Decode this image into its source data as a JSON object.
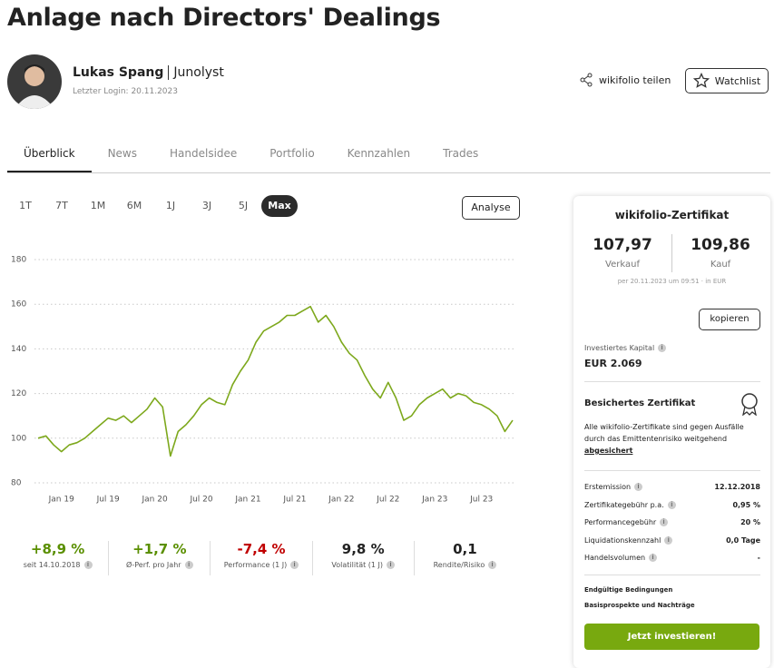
{
  "header": {
    "title": "Anlage nach Directors' Dealings",
    "trader": "Lukas Spang",
    "company": "Junolyst",
    "login": "Letzter Login: 20.11.2023",
    "share": "wikifolio teilen",
    "watchlist": "Watchlist"
  },
  "tabs": [
    "Überblick",
    "News",
    "Handelsidee",
    "Portfolio",
    "Kennzahlen",
    "Trades"
  ],
  "ranges": [
    "1T",
    "7T",
    "1M",
    "6M",
    "1J",
    "3J",
    "5J",
    "Max"
  ],
  "analyse": "Analyse",
  "chart_data": {
    "type": "line",
    "color": "#7da81c",
    "grid": true,
    "categories": [
      null,
      null,
      null,
      "Jan 19",
      null,
      null,
      null,
      null,
      null,
      "Jul 19",
      null,
      null,
      null,
      null,
      null,
      "Jan 20",
      null,
      null,
      null,
      null,
      null,
      "Jul 20",
      null,
      null,
      null,
      null,
      null,
      "Jan 21",
      null,
      null,
      null,
      null,
      null,
      "Jul 21",
      null,
      null,
      null,
      null,
      null,
      "Jan 22",
      null,
      null,
      null,
      null,
      null,
      "Jul 22",
      null,
      null,
      null,
      null,
      null,
      "Jan 23",
      null,
      null,
      null,
      null,
      null,
      "Jul 23",
      null,
      null,
      null,
      null
    ],
    "values": [
      100,
      101,
      97,
      94,
      97,
      98,
      100,
      103,
      106,
      109,
      108,
      110,
      107,
      110,
      113,
      118,
      114,
      92,
      103,
      106,
      110,
      115,
      118,
      116,
      115,
      124,
      130,
      135,
      143,
      148,
      150,
      152,
      155,
      155,
      157,
      159,
      152,
      155,
      150,
      143,
      138,
      135,
      128,
      122,
      118,
      125,
      118,
      108,
      110,
      115,
      118,
      120,
      122,
      118,
      120,
      119,
      116,
      115,
      113,
      110,
      103,
      108
    ],
    "ylim": [
      80,
      180
    ],
    "yticks": [
      80,
      100,
      120,
      140,
      160,
      180
    ]
  },
  "stats": [
    {
      "value": "+8,9 %",
      "label": "seit 14.10.2018",
      "color": "#5a8f00"
    },
    {
      "value": "+1,7 %",
      "label": "Ø-Perf. pro Jahr",
      "color": "#5a8f00"
    },
    {
      "value": "-7,4 %",
      "label": "Performance (1 J)",
      "color": "#c00000"
    },
    {
      "value": "9,8 %",
      "label": "Volatilität (1 J)",
      "color": "#222222"
    },
    {
      "value": "0,1",
      "label": "Rendite/Risiko",
      "color": "#222222"
    }
  ],
  "sidebar": {
    "title": "wikifolio-Zertifikat",
    "sell": "107,97",
    "sell_label": "Verkauf",
    "buy": "109,86",
    "buy_label": "Kauf",
    "timestamp": "per 20.11.2023 um 09:51 · in EUR",
    "copy": "kopieren",
    "capital_label": "Investiertes Kapital",
    "capital": "EUR 2.069",
    "secured_title": "Besichertes Zertifikat",
    "secured_text": "Alle wikifolio-Zertifikate sind gegen Ausfälle durch das Emittentenrisiko weitgehend",
    "secured_link": "abgesichert",
    "details": [
      [
        "Erstemission",
        "12.12.2018"
      ],
      [
        "Zertifikategebühr p.a.",
        "0,95 %"
      ],
      [
        "Performancegebühr",
        "20 %"
      ],
      [
        "Liquidationskennzahl",
        "0,0 Tage"
      ],
      [
        "Handelsvolumen",
        "-"
      ]
    ],
    "links": [
      "Endgültige Bedingungen",
      "Basisprospekte und Nachträge"
    ],
    "invest": "Jetzt investieren!"
  }
}
